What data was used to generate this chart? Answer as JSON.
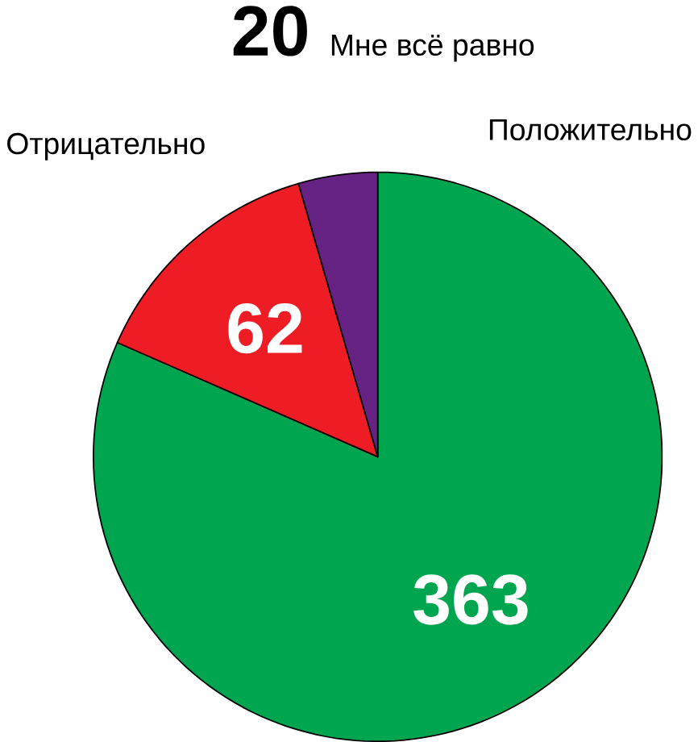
{
  "chart_data": {
    "type": "pie",
    "categories": [
      "Положительно",
      "Отрицательно",
      "Мне всё равно"
    ],
    "values": [
      363,
      62,
      20
    ],
    "colors": [
      "#00a54f",
      "#ee1c25",
      "#672383"
    ],
    "data_labels": true
  }
}
